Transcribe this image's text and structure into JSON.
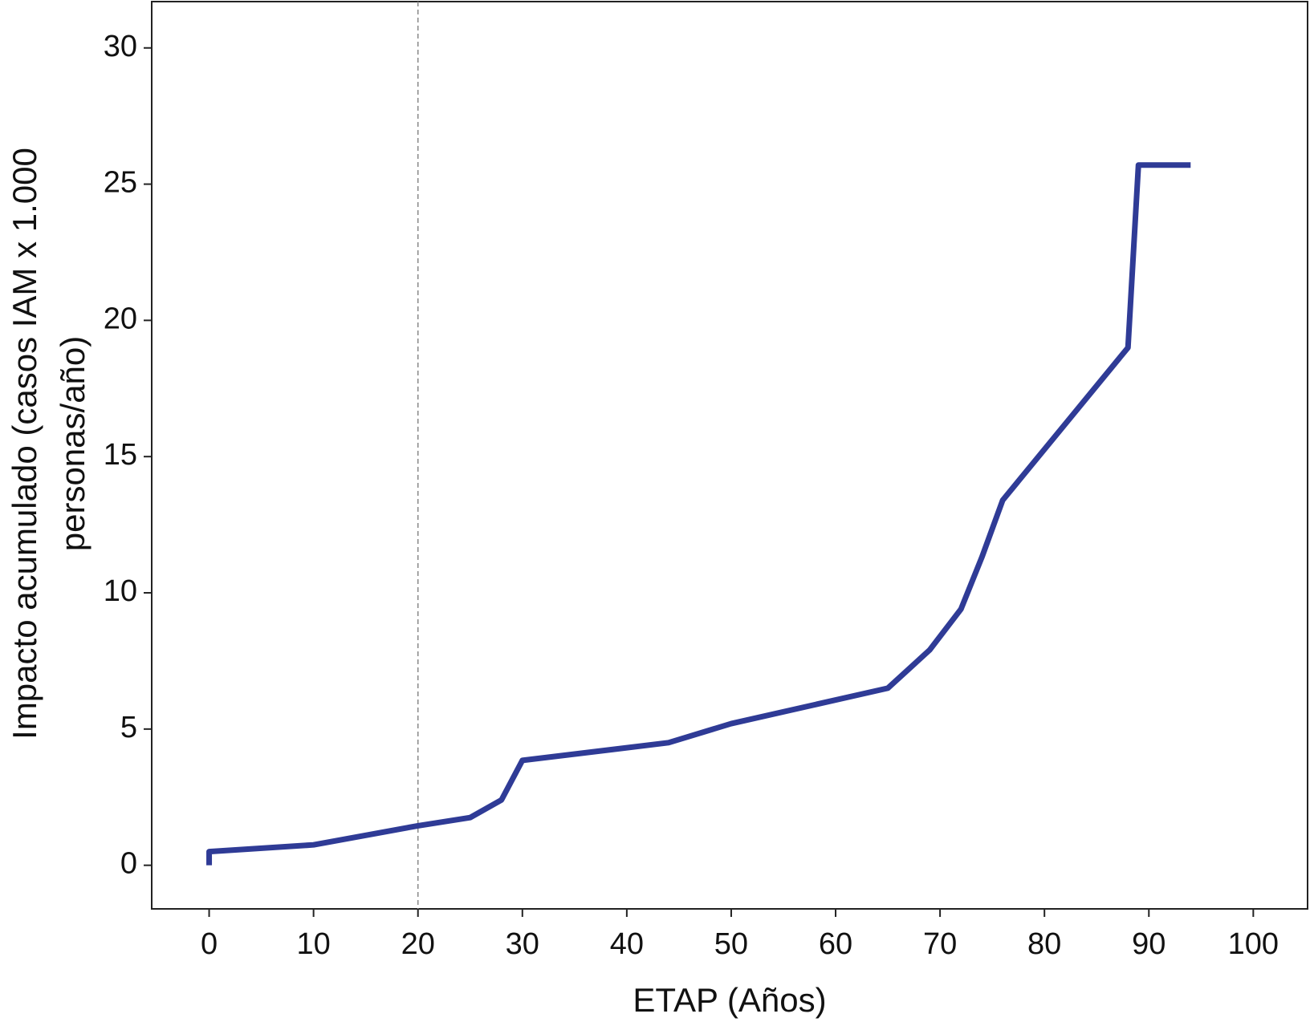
{
  "chart_data": {
    "type": "line",
    "x_label": "ETAP (Años)",
    "y_label": [
      "Impacto acumulado (casos IAM x 1.000",
      "personas/año)"
    ],
    "x": [
      0,
      0,
      10,
      20,
      25,
      28,
      30,
      44,
      50,
      65,
      69,
      72,
      74,
      76,
      88,
      89,
      94
    ],
    "series": [
      {
        "color": "#2f3b96",
        "values": [
          0,
          0.5,
          0.75,
          1.45,
          1.75,
          2.4,
          3.85,
          4.5,
          5.2,
          6.5,
          7.9,
          9.4,
          11.3,
          13.4,
          19.0,
          25.7,
          25.7
        ]
      }
    ],
    "reference_line_x": 20,
    "xlim": [
      -5.5,
      105.2
    ],
    "xticks": [
      0,
      10,
      20,
      30,
      40,
      50,
      60,
      70,
      80,
      90,
      100
    ],
    "ylim": [
      -1.6,
      31.7
    ],
    "yticks": [
      0,
      5,
      10,
      15,
      20,
      25,
      30
    ]
  }
}
